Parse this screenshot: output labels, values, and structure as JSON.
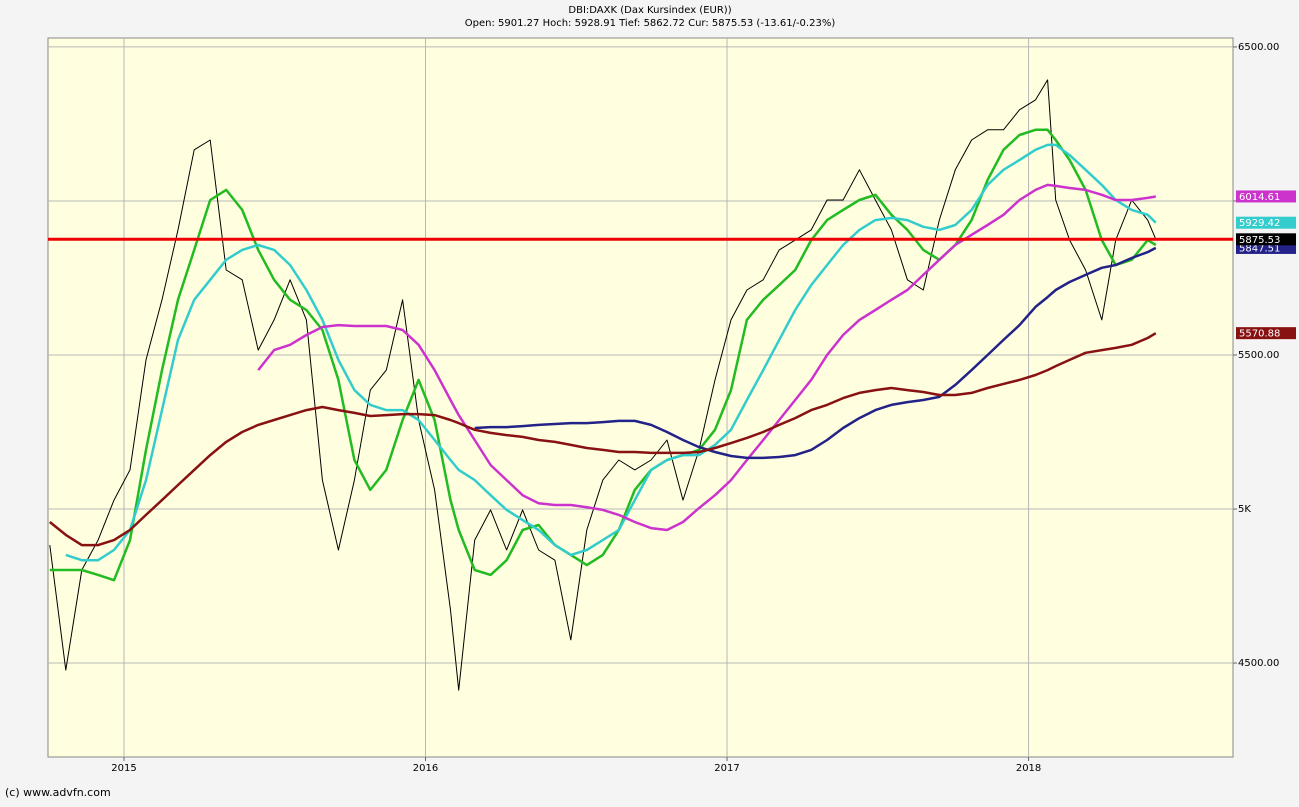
{
  "chart_data": {
    "type": "line",
    "title": "DBI:DAXK (Dax Kursindex (EUR))",
    "subtitle": "Open: 5901.27 Hoch: 5928.91 Tief: 5862.72 Cur: 5875.53 (-13.61/-0.23%)",
    "footer": "(c) www.advfn.com",
    "xlim": [
      2014.748,
      2018.678
    ],
    "ylim": [
      4195,
      6529
    ],
    "xticks": [
      2015,
      2016,
      2017,
      2018
    ],
    "yticks": [
      {
        "value": 4500,
        "label": "4500.00"
      },
      {
        "value": 5000,
        "label": "5K"
      },
      {
        "value": 5500,
        "label": "5500.00"
      },
      {
        "value": 6000,
        "label": null
      },
      {
        "value": 6500,
        "label": "6500.00"
      }
    ],
    "grid": true,
    "reference_line_color": "#ee0000",
    "x": [
      2014.754,
      2014.807,
      2014.86,
      2014.914,
      2014.967,
      2015.02,
      2015.073,
      2015.126,
      2015.179,
      2015.233,
      2015.286,
      2015.339,
      2015.392,
      2015.445,
      2015.498,
      2015.551,
      2015.605,
      2015.658,
      2015.711,
      2015.764,
      2015.817,
      2015.87,
      2015.924,
      2015.977,
      2016.03,
      2016.083,
      2016.11,
      2016.163,
      2016.216,
      2016.269,
      2016.322,
      2016.375,
      2016.429,
      2016.482,
      2016.535,
      2016.588,
      2016.641,
      2016.694,
      2016.748,
      2016.801,
      2016.854,
      2016.907,
      2016.96,
      2017.013,
      2017.066,
      2017.12,
      2017.173,
      2017.226,
      2017.279,
      2017.332,
      2017.385,
      2017.439,
      2017.492,
      2017.545,
      2017.598,
      2017.651,
      2017.704,
      2017.757,
      2017.811,
      2017.864,
      2017.917,
      2017.97,
      2018.023,
      2018.063,
      2018.09,
      2018.136,
      2018.189,
      2018.243,
      2018.289,
      2018.342,
      2018.395,
      2018.422
    ],
    "series": [
      {
        "color": "#000000",
        "width": 1,
        "last_value_label": true,
        "values": [
          4883,
          4477,
          4802,
          4899,
          5029,
          5127,
          5484,
          5679,
          5906,
          6166,
          6198,
          5776,
          5744,
          5516,
          5614,
          5744,
          5614,
          5094,
          4867,
          5094,
          5386,
          5451,
          5679,
          5289,
          5062,
          4672,
          4412,
          4899,
          4997,
          4867,
          4997,
          4867,
          4834,
          4575,
          4932,
          5094,
          5159,
          5127,
          5159,
          5224,
          5029,
          5192,
          5419,
          5614,
          5711,
          5744,
          5841,
          5873,
          5906,
          6003,
          6003,
          6101,
          6003,
          5906,
          5744,
          5711,
          5938,
          6101,
          6198,
          6231,
          6231,
          6296,
          6328,
          6393,
          6003,
          5873,
          5776,
          5614,
          5873,
          6003,
          5938,
          5875.53
        ]
      },
      {
        "color": "#22bb22",
        "width": 2.5,
        "last_value_label": false,
        "values": [
          4802,
          4802,
          4802,
          4786,
          4769,
          4899,
          5192,
          5451,
          5679,
          5841,
          6003,
          6036,
          5971,
          5841,
          5744,
          5679,
          5646,
          5581,
          5419,
          5159,
          5062,
          5127,
          5289,
          5419,
          5289,
          5029,
          4932,
          4802,
          4786,
          4834,
          4932,
          4948,
          4883,
          4851,
          4818,
          4851,
          4932,
          5062,
          5127,
          5159,
          5175,
          5192,
          5257,
          5386,
          5614,
          5679,
          5727,
          5776,
          5873,
          5938,
          5971,
          6003,
          6020,
          5955,
          5906,
          5841,
          5809,
          5857,
          5938,
          6068,
          6166,
          6214,
          6231,
          6231,
          6198,
          6133,
          6036,
          5873,
          5792,
          5809,
          5873,
          5857
        ]
      },
      {
        "color": "#33cccc",
        "width": 2.5,
        "last_value_label": true,
        "values": [
          null,
          4851,
          4834,
          4834,
          4867,
          4932,
          5094,
          5321,
          5549,
          5679,
          5744,
          5809,
          5841,
          5857,
          5841,
          5792,
          5711,
          5614,
          5484,
          5386,
          5338,
          5321,
          5321,
          5289,
          5224,
          5159,
          5127,
          5094,
          5045,
          4997,
          4964,
          4932,
          4883,
          4851,
          4867,
          4899,
          4932,
          5029,
          5127,
          5159,
          5175,
          5175,
          5208,
          5257,
          5354,
          5451,
          5549,
          5646,
          5727,
          5792,
          5857,
          5906,
          5938,
          5945,
          5938,
          5916,
          5906,
          5922,
          5971,
          6052,
          6101,
          6133,
          6166,
          6182,
          6182,
          6149,
          6101,
          6052,
          6003,
          5971,
          5955,
          5929.42
        ]
      },
      {
        "color": "#cc33cc",
        "width": 2.5,
        "last_value_label": true,
        "values": [
          null,
          null,
          null,
          null,
          null,
          null,
          null,
          null,
          null,
          null,
          null,
          null,
          null,
          5451,
          5516,
          5533,
          5565,
          5591,
          5597,
          5594,
          5594,
          5594,
          5581,
          5533,
          5451,
          5354,
          5305,
          5224,
          5143,
          5094,
          5045,
          5019,
          5013,
          5013,
          5006,
          4997,
          4981,
          4958,
          4938,
          4932,
          4958,
          5003,
          5045,
          5094,
          5159,
          5224,
          5289,
          5354,
          5419,
          5500,
          5565,
          5614,
          5646,
          5679,
          5711,
          5760,
          5809,
          5857,
          5890,
          5922,
          5955,
          6003,
          6036,
          6052,
          6049,
          6042,
          6036,
          6020,
          6003,
          6003,
          6010,
          6014.61
        ]
      },
      {
        "color": "#222288",
        "width": 2.5,
        "last_value_label": true,
        "values": [
          null,
          null,
          null,
          null,
          null,
          null,
          null,
          null,
          null,
          null,
          null,
          null,
          null,
          null,
          null,
          null,
          null,
          null,
          null,
          null,
          null,
          null,
          null,
          null,
          null,
          null,
          null,
          5263,
          5266,
          5266,
          5269,
          5273,
          5276,
          5279,
          5279,
          5282,
          5286,
          5286,
          5273,
          5250,
          5224,
          5201,
          5185,
          5172,
          5166,
          5166,
          5169,
          5175,
          5192,
          5224,
          5263,
          5295,
          5321,
          5338,
          5347,
          5354,
          5364,
          5403,
          5451,
          5500,
          5549,
          5597,
          5656,
          5688,
          5711,
          5737,
          5760,
          5783,
          5792,
          5815,
          5834,
          5847.51
        ]
      },
      {
        "color": "#881111",
        "width": 2.5,
        "last_value_label": true,
        "values": [
          4958,
          4916,
          4883,
          4883,
          4899,
          4932,
          4981,
          5029,
          5078,
          5127,
          5175,
          5218,
          5250,
          5273,
          5289,
          5305,
          5321,
          5331,
          5321,
          5312,
          5302,
          5305,
          5308,
          5308,
          5305,
          5289,
          5279,
          5257,
          5247,
          5240,
          5234,
          5224,
          5218,
          5208,
          5198,
          5192,
          5185,
          5185,
          5182,
          5182,
          5182,
          5185,
          5198,
          5214,
          5231,
          5250,
          5273,
          5295,
          5321,
          5338,
          5360,
          5377,
          5386,
          5393,
          5386,
          5380,
          5370,
          5370,
          5377,
          5393,
          5406,
          5419,
          5435,
          5451,
          5464,
          5484,
          5507,
          5516,
          5523,
          5533,
          5555,
          5570.88
        ]
      }
    ]
  }
}
